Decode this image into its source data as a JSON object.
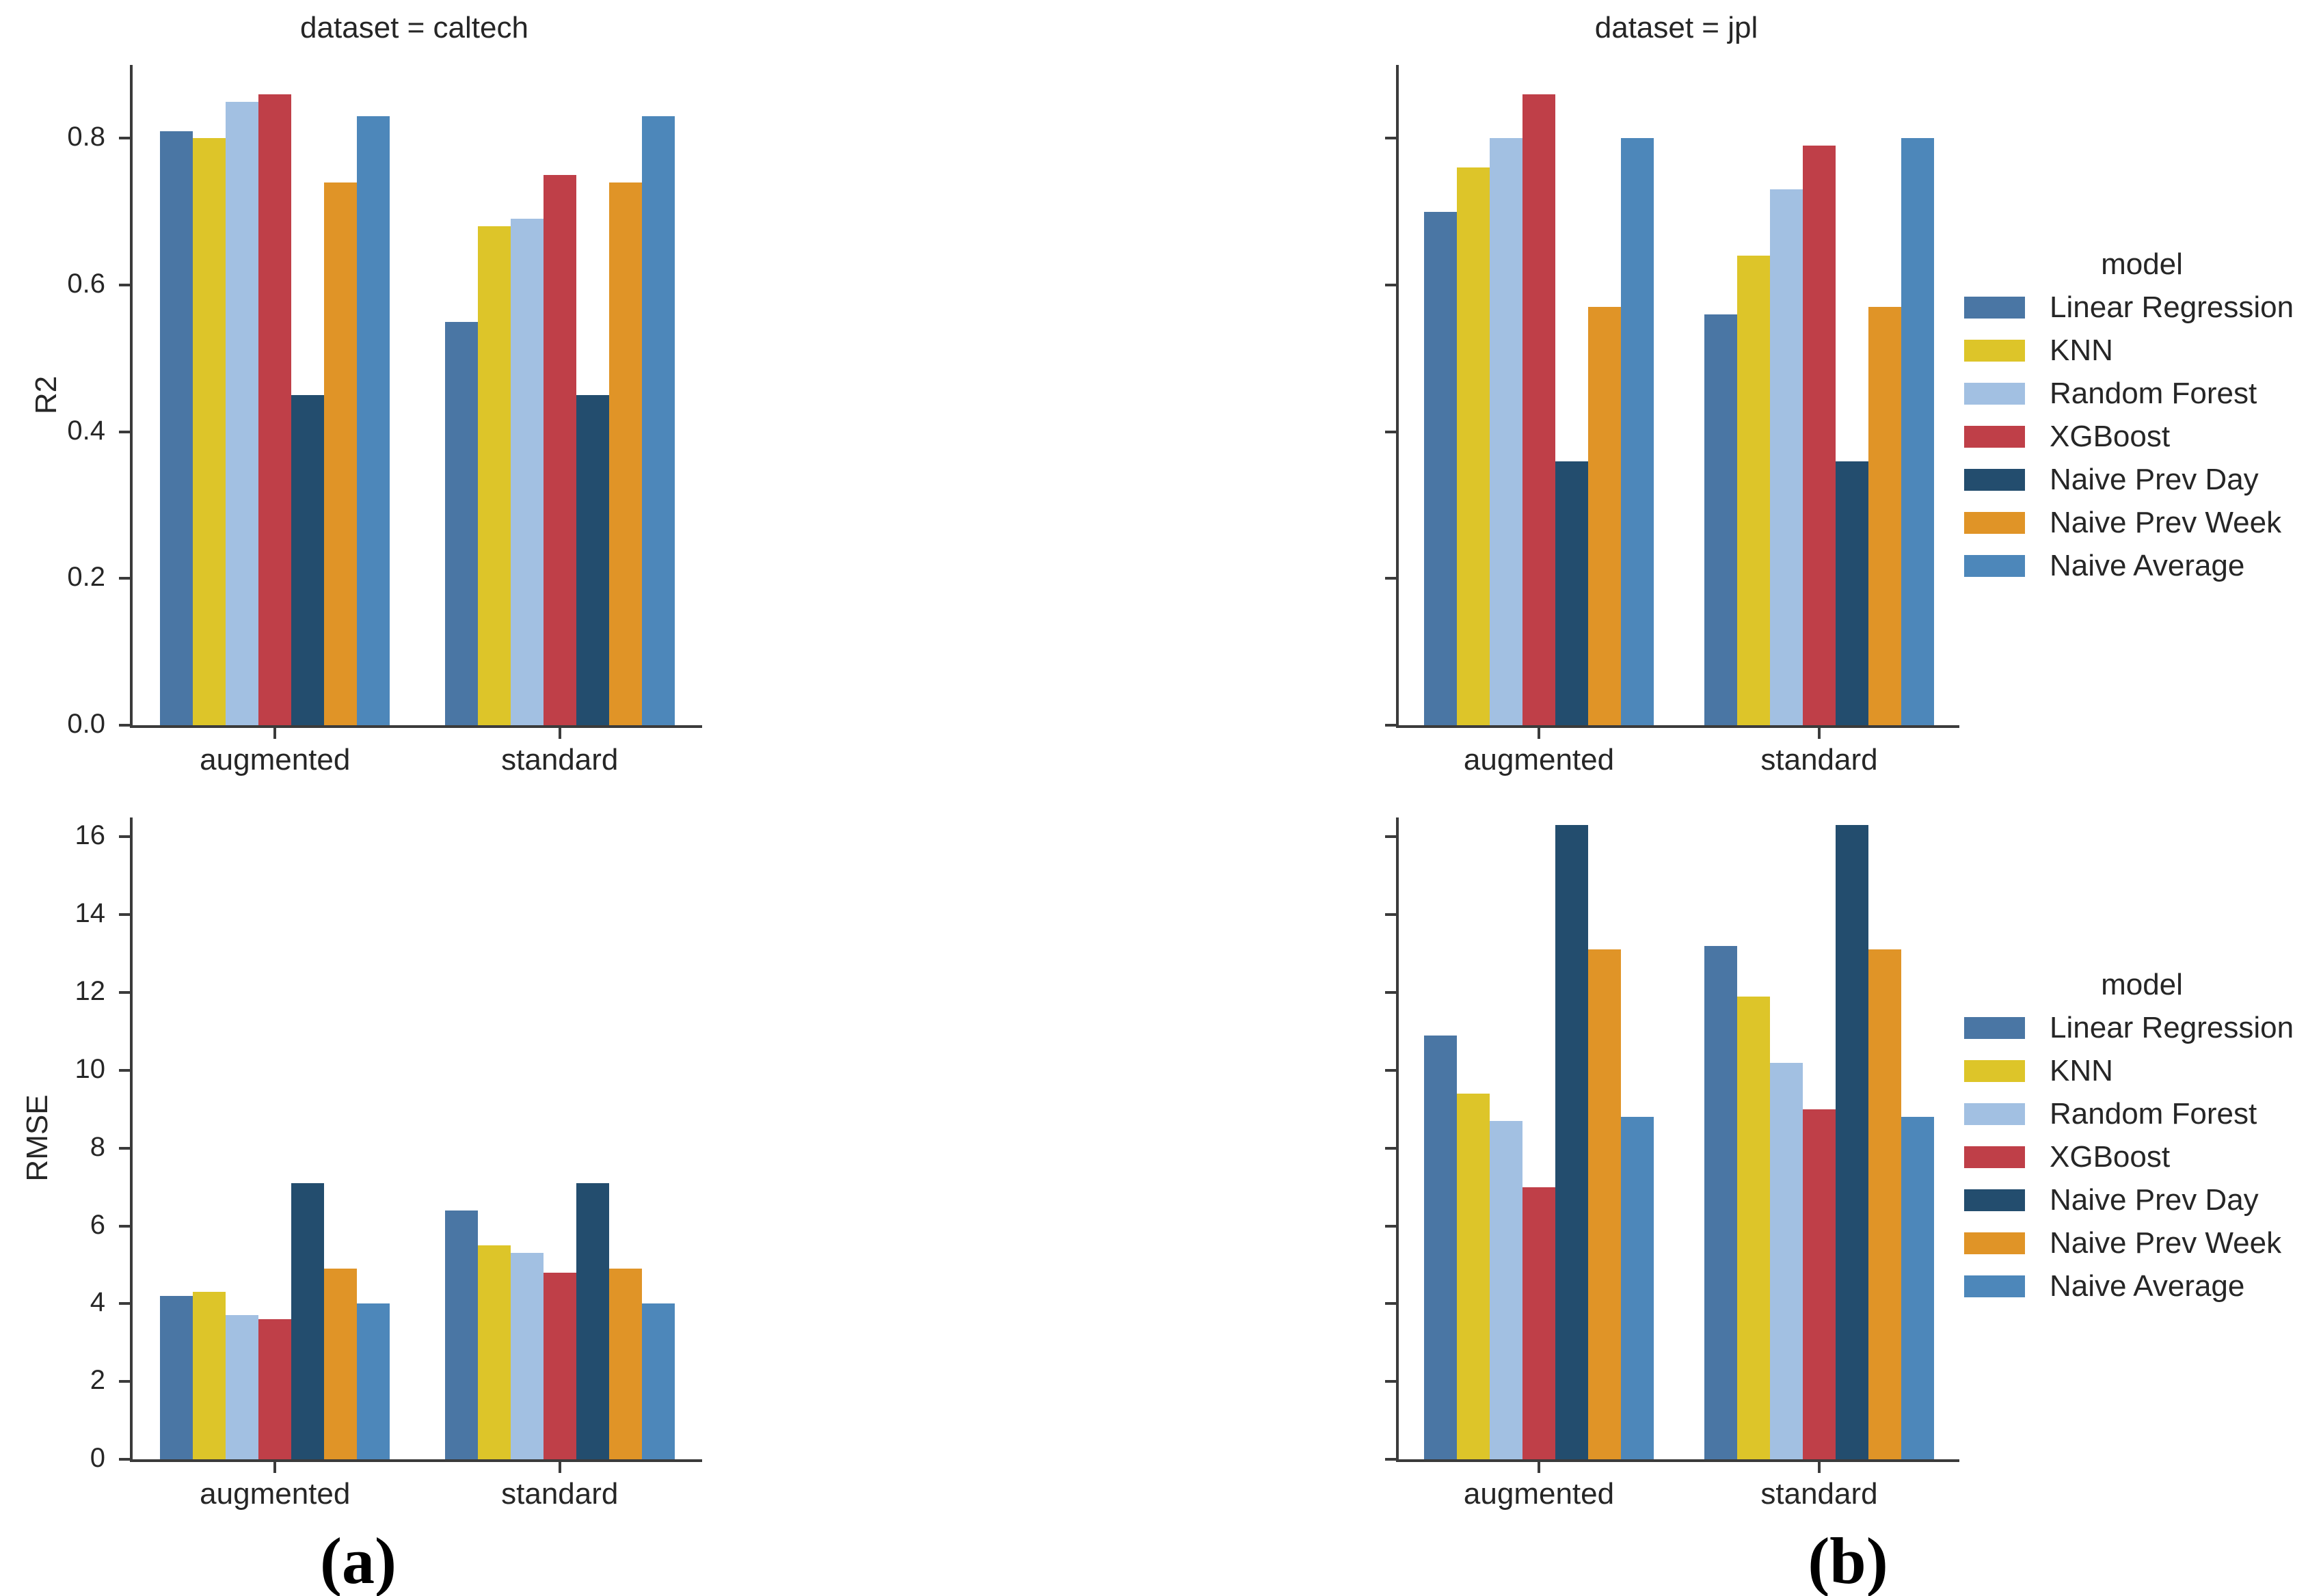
{
  "figure": {
    "background": "#ffffff",
    "text_color": "#262626",
    "spine_color": "#3b3b3b"
  },
  "captions": {
    "a": "(a)",
    "b": "(b)"
  },
  "legend": {
    "title": "model"
  },
  "models": [
    {
      "name": "Linear Regression",
      "color": "#4a76a4"
    },
    {
      "name": "KNN",
      "color": "#ddc529"
    },
    {
      "name": "Random Forest",
      "color": "#a2c0e2"
    },
    {
      "name": "XGBoost",
      "color": "#bf3f48"
    },
    {
      "name": "Naive Prev Day",
      "color": "#234d6e"
    },
    {
      "name": "Naive Prev Week",
      "color": "#e09427"
    },
    {
      "name": "Naive Average",
      "color": "#4d87ba"
    }
  ],
  "chart_data": [
    {
      "type": "bar",
      "panel": "top-left",
      "title": "dataset = caltech",
      "xlabel": "",
      "ylabel": "R2",
      "categories": [
        "augmented",
        "standard"
      ],
      "ylim": [
        0,
        0.9
      ],
      "yticks": [
        0.0,
        0.2,
        0.4,
        0.6,
        0.8
      ],
      "ytick_labels": [
        "0.0",
        "0.2",
        "0.4",
        "0.6",
        "0.8"
      ],
      "grid": false,
      "series": [
        {
          "name": "Linear Regression",
          "values": [
            0.81,
            0.55
          ]
        },
        {
          "name": "KNN",
          "values": [
            0.8,
            0.68
          ]
        },
        {
          "name": "Random Forest",
          "values": [
            0.85,
            0.69
          ]
        },
        {
          "name": "XGBoost",
          "values": [
            0.86,
            0.75
          ]
        },
        {
          "name": "Naive Prev Day",
          "values": [
            0.45,
            0.45
          ]
        },
        {
          "name": "Naive Prev Week",
          "values": [
            0.74,
            0.74
          ]
        },
        {
          "name": "Naive Average",
          "values": [
            0.83,
            0.83
          ]
        }
      ]
    },
    {
      "type": "bar",
      "panel": "top-right",
      "title": "dataset = jpl",
      "xlabel": "",
      "ylabel": "",
      "categories": [
        "augmented",
        "standard"
      ],
      "ylim": [
        0,
        0.9
      ],
      "yticks": [
        0.0,
        0.2,
        0.4,
        0.6,
        0.8
      ],
      "ytick_labels": [],
      "grid": false,
      "legend_position": "right",
      "series": [
        {
          "name": "Linear Regression",
          "values": [
            0.7,
            0.56
          ]
        },
        {
          "name": "KNN",
          "values": [
            0.76,
            0.64
          ]
        },
        {
          "name": "Random Forest",
          "values": [
            0.8,
            0.73
          ]
        },
        {
          "name": "XGBoost",
          "values": [
            0.86,
            0.79
          ]
        },
        {
          "name": "Naive Prev Day",
          "values": [
            0.36,
            0.36
          ]
        },
        {
          "name": "Naive Prev Week",
          "values": [
            0.57,
            0.57
          ]
        },
        {
          "name": "Naive Average",
          "values": [
            0.8,
            0.8
          ]
        }
      ]
    },
    {
      "type": "bar",
      "panel": "bottom-left",
      "title": "",
      "xlabel": "",
      "ylabel": "RMSE",
      "categories": [
        "augmented",
        "standard"
      ],
      "ylim": [
        0,
        16.5
      ],
      "yticks": [
        0,
        2,
        4,
        6,
        8,
        10,
        12,
        14,
        16
      ],
      "ytick_labels": [
        "0",
        "2",
        "4",
        "6",
        "8",
        "10",
        "12",
        "14",
        "16"
      ],
      "grid": false,
      "series": [
        {
          "name": "Linear Regression",
          "values": [
            4.2,
            6.4
          ]
        },
        {
          "name": "KNN",
          "values": [
            4.3,
            5.5
          ]
        },
        {
          "name": "Random Forest",
          "values": [
            3.7,
            5.3
          ]
        },
        {
          "name": "XGBoost",
          "values": [
            3.6,
            4.8
          ]
        },
        {
          "name": "Naive Prev Day",
          "values": [
            7.1,
            7.1
          ]
        },
        {
          "name": "Naive Prev Week",
          "values": [
            4.9,
            4.9
          ]
        },
        {
          "name": "Naive Average",
          "values": [
            4.0,
            4.0
          ]
        }
      ]
    },
    {
      "type": "bar",
      "panel": "bottom-right",
      "title": "",
      "xlabel": "",
      "ylabel": "",
      "categories": [
        "augmented",
        "standard"
      ],
      "ylim": [
        0,
        16.5
      ],
      "yticks": [
        0,
        2,
        4,
        6,
        8,
        10,
        12,
        14,
        16
      ],
      "ytick_labels": [],
      "grid": false,
      "legend_position": "right",
      "series": [
        {
          "name": "Linear Regression",
          "values": [
            10.9,
            13.2
          ]
        },
        {
          "name": "KNN",
          "values": [
            9.4,
            11.9
          ]
        },
        {
          "name": "Random Forest",
          "values": [
            8.7,
            10.2
          ]
        },
        {
          "name": "XGBoost",
          "values": [
            7.0,
            9.0
          ]
        },
        {
          "name": "Naive Prev Day",
          "values": [
            16.3,
            16.3
          ]
        },
        {
          "name": "Naive Prev Week",
          "values": [
            13.1,
            13.1
          ]
        },
        {
          "name": "Naive Average",
          "values": [
            8.8,
            8.8
          ]
        }
      ]
    }
  ]
}
